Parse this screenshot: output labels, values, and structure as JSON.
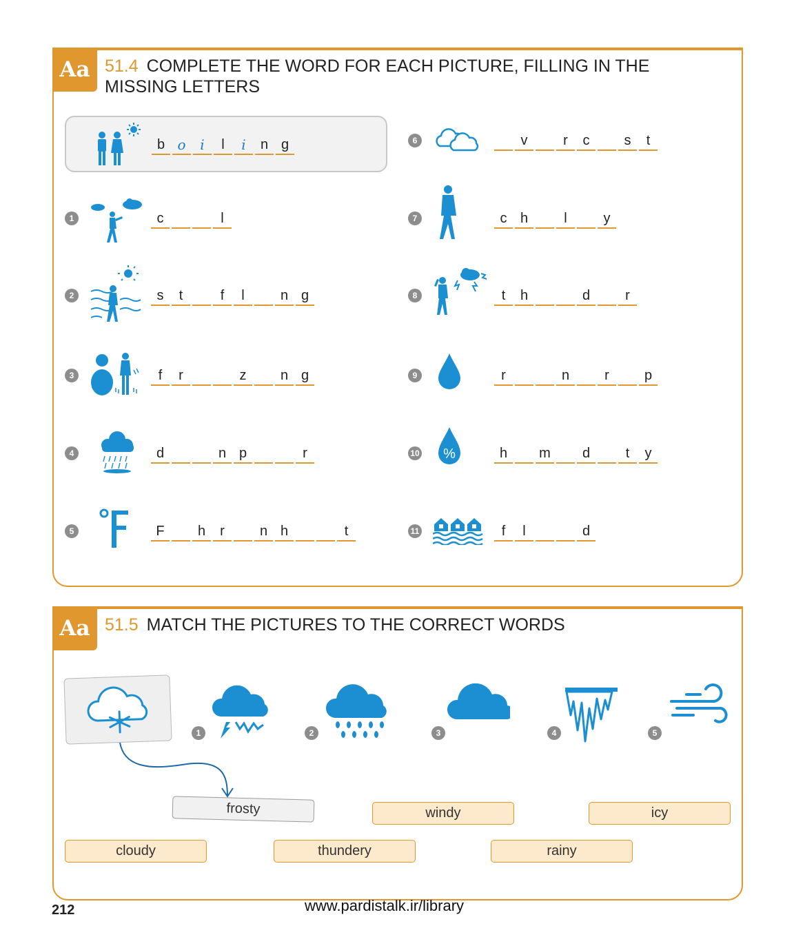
{
  "ex1": {
    "badge": "Aa",
    "number": "51.4",
    "title_line1": "COMPLETE THE WORD FOR EACH PICTURE, FILLING IN THE",
    "title_line2": "MISSING LETTERS",
    "example": {
      "slots": [
        {
          "t": "b",
          "hand": false
        },
        {
          "t": "o",
          "hand": true
        },
        {
          "t": "i",
          "hand": true
        },
        {
          "t": "l",
          "hand": false
        },
        {
          "t": "i",
          "hand": true
        },
        {
          "t": "n",
          "hand": false
        },
        {
          "t": "g",
          "hand": false
        }
      ]
    },
    "items": [
      {
        "num": "1",
        "icon": "person-wind-icon",
        "slots": [
          "c",
          "",
          "",
          "l"
        ]
      },
      {
        "num": "2",
        "icon": "person-heat-waves-icon",
        "slots": [
          "s",
          "t",
          "",
          "f",
          "l",
          "",
          "n",
          "g"
        ]
      },
      {
        "num": "3",
        "icon": "snowman-icon",
        "slots": [
          "f",
          "r",
          "",
          "",
          "z",
          "",
          "n",
          "g"
        ]
      },
      {
        "num": "4",
        "icon": "rain-cloud-puddle-icon",
        "slots": [
          "d",
          "",
          "",
          "n",
          "p",
          "",
          "",
          "r"
        ]
      },
      {
        "num": "5",
        "icon": "fahrenheit-icon",
        "slots": [
          "F",
          "",
          "h",
          "r",
          "",
          "n",
          "h",
          "",
          "",
          "t"
        ]
      },
      {
        "num": "6",
        "icon": "overcast-clouds-icon",
        "slots": [
          "",
          "v",
          "",
          "r",
          "c",
          "",
          "s",
          "t"
        ]
      },
      {
        "num": "7",
        "icon": "person-winter-coat-icon",
        "slots": [
          "c",
          "h",
          "",
          "l",
          "",
          "y"
        ]
      },
      {
        "num": "8",
        "icon": "person-thunder-icon",
        "slots": [
          "t",
          "h",
          "",
          "",
          "d",
          "",
          "r"
        ]
      },
      {
        "num": "9",
        "icon": "raindrop-icon",
        "slots": [
          "r",
          "",
          "",
          "n",
          "",
          "r",
          "",
          "p"
        ]
      },
      {
        "num": "10",
        "icon": "humidity-drop-icon",
        "slots": [
          "h",
          "",
          "m",
          "",
          "d",
          "",
          "t",
          "y"
        ]
      },
      {
        "num": "11",
        "icon": "flooded-houses-icon",
        "slots": [
          "f",
          "l",
          "",
          "",
          "d"
        ]
      }
    ]
  },
  "ex2": {
    "badge": "Aa",
    "number": "51.5",
    "title": "MATCH THE PICTURES TO THE CORRECT WORDS",
    "pictures": [
      {
        "num": "1",
        "icon": "thunder-cloud-icon"
      },
      {
        "num": "2",
        "icon": "rain-cloud-icon"
      },
      {
        "num": "3",
        "icon": "cloud-icon"
      },
      {
        "num": "4",
        "icon": "icicles-icon"
      },
      {
        "num": "5",
        "icon": "wind-icon"
      }
    ],
    "example_icon": "snow-cloud-icon",
    "words": {
      "frosty": "frosty",
      "windy": "windy",
      "icy": "icy",
      "cloudy": "cloudy",
      "thundery": "thundery",
      "rainy": "rainy"
    }
  },
  "footer": {
    "page_number": "212",
    "url": "www.pardistalk.ir/library"
  },
  "colors": {
    "accent": "#e0982e",
    "icon_blue": "#1c8fd2",
    "box_fill": "#fde9cc"
  }
}
